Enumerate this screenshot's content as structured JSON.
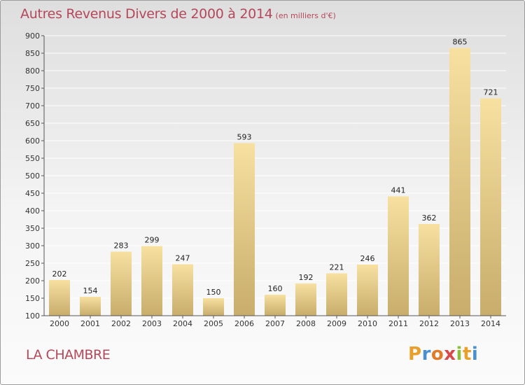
{
  "header": {
    "title": "Autres Revenus Divers de 2000 à 2014",
    "subtitle": "(en milliers d'€)"
  },
  "footer": {
    "place": "LA CHAMBRE",
    "logo_letters": [
      "P",
      "r",
      "o",
      "x",
      "i",
      "t",
      "i"
    ],
    "logo_colors": [
      "#e8a02a",
      "#4a8fcf",
      "#e07b2a",
      "#d64a4a",
      "#8bbf3a",
      "#e8a02a",
      "#4a8fcf"
    ]
  },
  "chart_data": {
    "type": "bar",
    "title": "Autres Revenus Divers de 2000 à 2014",
    "subtitle": "(en milliers d'€)",
    "xlabel": "",
    "ylabel": "",
    "categories": [
      "2000",
      "2001",
      "2002",
      "2003",
      "2004",
      "2005",
      "2006",
      "2007",
      "2008",
      "2009",
      "2010",
      "2011",
      "2012",
      "2013",
      "2014"
    ],
    "values": [
      202,
      154,
      283,
      299,
      247,
      150,
      593,
      160,
      192,
      221,
      246,
      441,
      362,
      865,
      721
    ],
    "ylim": [
      100,
      900
    ],
    "yticks": [
      100,
      150,
      200,
      250,
      300,
      350,
      400,
      450,
      500,
      550,
      600,
      650,
      700,
      750,
      800,
      850,
      900
    ],
    "grid": true,
    "legend": "none",
    "colors": {
      "bar_light": "#f5dc98",
      "bar_dark": "#c6ad6c",
      "grid": "#ffffff",
      "axis": "#555555"
    }
  }
}
